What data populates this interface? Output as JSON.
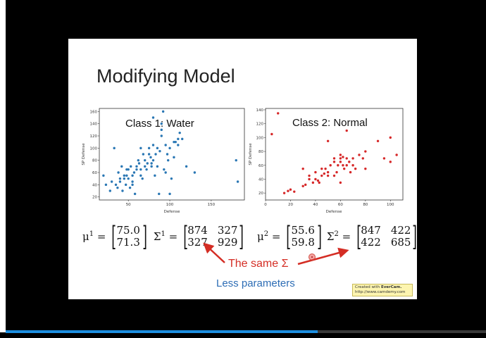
{
  "slide": {
    "title": "Modifying Model",
    "left_chart": {
      "title": "Class 1: Water",
      "xlabel": "Defense",
      "ylabel": "SP Defense",
      "color": "#2a77b4",
      "xlim": [
        15,
        190
      ],
      "ylim": [
        15,
        165
      ],
      "xticks": [
        50,
        100,
        150
      ],
      "yticks": [
        20,
        40,
        60,
        80,
        100,
        120,
        140,
        160
      ]
    },
    "right_chart": {
      "title": "Class 2: Normal",
      "xlabel": "Defense",
      "ylabel": "SP Defense",
      "color": "#d62728",
      "xlim": [
        0,
        110
      ],
      "ylim": [
        10,
        142
      ],
      "xticks": [
        0,
        20,
        40,
        60,
        80,
        100
      ],
      "yticks": [
        20,
        40,
        60,
        80,
        100,
        120,
        140
      ]
    },
    "eq_left": {
      "mu_symbol": "μ",
      "mu_sup": "1",
      "mu_values": [
        "75.0",
        "71.3"
      ],
      "sigma_symbol": "Σ",
      "sigma_sup": "1",
      "sigma_values": [
        "874",
        "327",
        "327",
        "929"
      ]
    },
    "eq_right": {
      "mu_symbol": "μ",
      "mu_sup": "2",
      "mu_values": [
        "55.6",
        "59.8"
      ],
      "sigma_symbol": "Σ",
      "sigma_sup": "2",
      "sigma_values": [
        "847",
        "422",
        "422",
        "685"
      ]
    },
    "same_sigma_label": "The same Σ",
    "less_params_label": "Less parameters",
    "accent_red": "#d42d24",
    "accent_blue": "#2d6db5"
  },
  "watermark": {
    "line1_prefix": "Created with ",
    "line1_brand": "EverCam.",
    "line2": "http://www.camdemy.com"
  },
  "player": {
    "progress_fraction": 0.65
  },
  "chart_data": [
    {
      "type": "scatter",
      "title": "Class 1: Water",
      "xlabel": "Defense",
      "ylabel": "SP Defense",
      "xlim": [
        15,
        190
      ],
      "ylim": [
        15,
        165
      ],
      "series": [
        {
          "x": [
            20,
            23,
            28,
            30,
            33,
            35,
            37,
            38,
            40,
            40,
            42,
            43,
            45,
            45,
            47,
            48,
            48,
            50,
            50,
            52,
            53,
            55,
            55,
            55,
            57,
            58,
            60,
            60,
            62,
            63,
            65,
            65,
            65,
            67,
            68,
            70,
            70,
            72,
            73,
            75,
            75,
            77,
            78,
            78,
            80,
            80,
            80,
            82,
            83,
            85,
            85,
            87,
            88,
            90,
            90,
            90,
            92,
            93,
            95,
            95,
            97,
            98,
            100,
            100,
            102,
            105,
            105,
            107,
            110,
            110,
            112,
            115,
            120,
            130,
            180,
            182
          ],
          "y": [
            55,
            40,
            30,
            45,
            100,
            40,
            35,
            60,
            50,
            45,
            70,
            30,
            50,
            55,
            40,
            55,
            65,
            50,
            65,
            35,
            70,
            45,
            55,
            40,
            60,
            25,
            65,
            70,
            80,
            75,
            100,
            65,
            55,
            50,
            90,
            70,
            80,
            65,
            75,
            90,
            100,
            85,
            75,
            70,
            80,
            105,
            150,
            55,
            90,
            70,
            100,
            25,
            95,
            130,
            120,
            140,
            160,
            65,
            60,
            105,
            90,
            80,
            100,
            25,
            50,
            85,
            110,
            110,
            115,
            105,
            125,
            115,
            70,
            60,
            80,
            45
          ]
        }
      ]
    },
    {
      "type": "scatter",
      "title": "Class 2: Normal",
      "xlabel": "Defense",
      "ylabel": "SP Defense",
      "xlim": [
        0,
        110
      ],
      "ylim": [
        10,
        142
      ],
      "series": [
        {
          "x": [
            5,
            10,
            15,
            18,
            20,
            23,
            30,
            30,
            32,
            35,
            35,
            38,
            40,
            40,
            42,
            43,
            45,
            45,
            47,
            48,
            50,
            50,
            50,
            52,
            55,
            55,
            55,
            57,
            58,
            60,
            60,
            60,
            60,
            62,
            62,
            63,
            65,
            65,
            65,
            67,
            68,
            70,
            70,
            72,
            75,
            78,
            80,
            80,
            90,
            95,
            100,
            100,
            105
          ],
          "y": [
            105,
            135,
            20,
            23,
            25,
            22,
            30,
            55,
            32,
            40,
            45,
            35,
            40,
            50,
            38,
            35,
            45,
            55,
            48,
            55,
            50,
            45,
            95,
            60,
            65,
            70,
            45,
            50,
            60,
            65,
            70,
            75,
            35,
            60,
            72,
            55,
            60,
            70,
            110,
            65,
            50,
            60,
            70,
            55,
            75,
            70,
            80,
            55,
            95,
            70,
            65,
            100,
            75
          ]
        }
      ]
    }
  ]
}
